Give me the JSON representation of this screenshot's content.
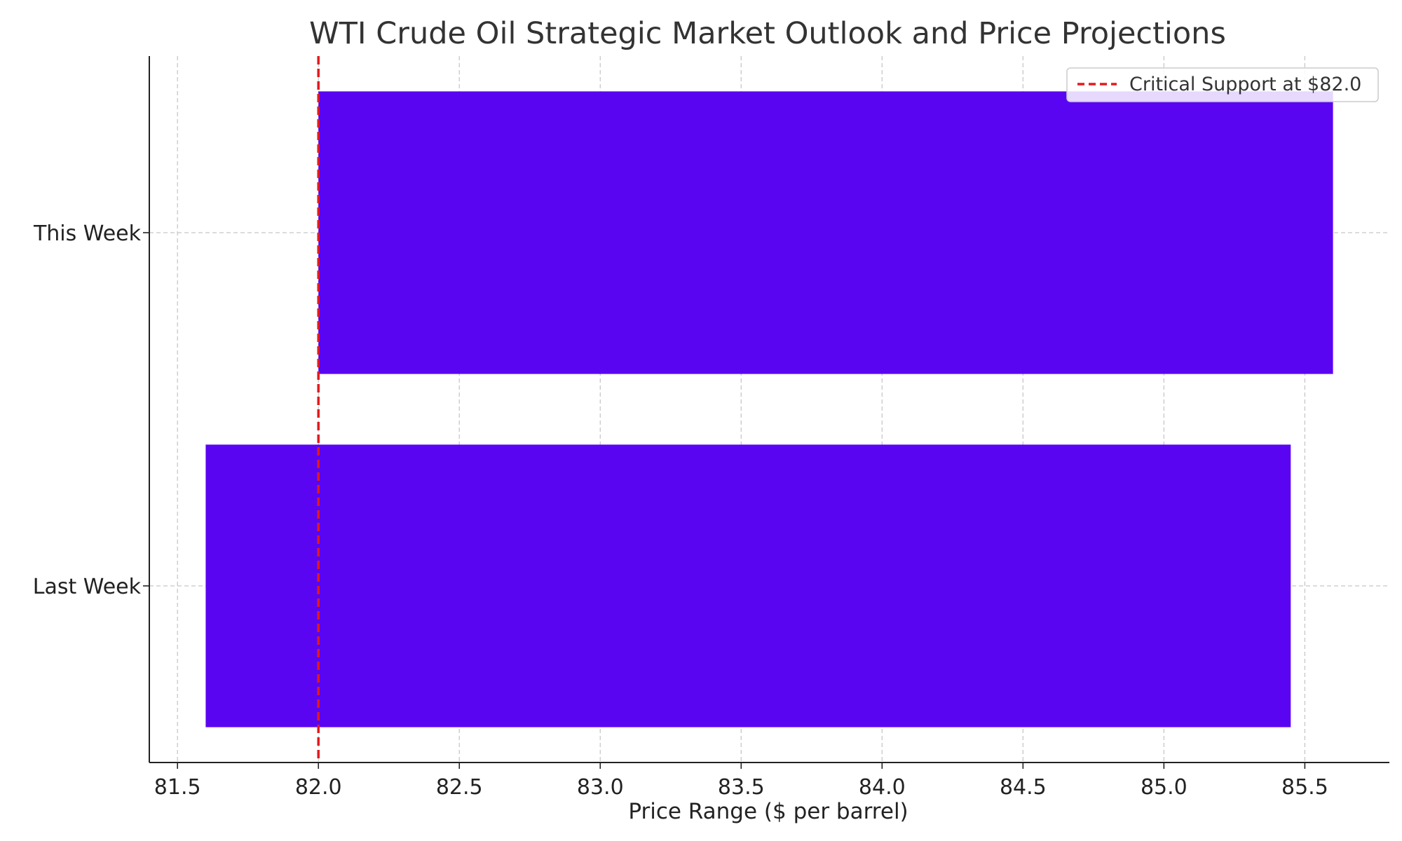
{
  "chart_data": {
    "type": "bar",
    "orientation": "horizontal",
    "title": "WTI Crude Oil Strategic Market Outlook and Price Projections",
    "xlabel": "Price Range ($ per barrel)",
    "ylabel": "",
    "categories": [
      "Last Week",
      "This Week"
    ],
    "ranges": [
      {
        "category": "Last Week",
        "low": 81.6,
        "high": 85.45
      },
      {
        "category": "This Week",
        "low": 82.0,
        "high": 85.6
      }
    ],
    "xlim": [
      81.4,
      85.8
    ],
    "xticks": [
      81.5,
      82.0,
      82.5,
      83.0,
      83.5,
      84.0,
      84.5,
      85.0,
      85.5
    ],
    "xtick_labels": [
      "81.5",
      "82.0",
      "82.5",
      "83.0",
      "83.5",
      "84.0",
      "84.5",
      "85.0",
      "85.5"
    ],
    "reference_line": {
      "value": 82.0,
      "label": "Critical Support at $82.0",
      "style": "dashed",
      "color": "#e31a1c"
    },
    "legend": {
      "placement": "top-right",
      "entries": [
        "Critical Support at $82.0"
      ]
    },
    "grid": true,
    "bar_color": "#5a05f2"
  }
}
